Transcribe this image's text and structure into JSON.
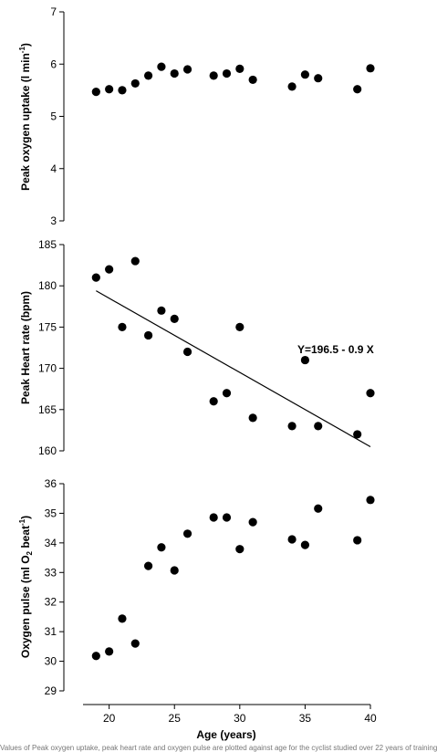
{
  "chart_data": [
    {
      "type": "scatter",
      "title": "",
      "ylabel": "Peak oxygen uptake (l min",
      "ylabel_sup": "-1",
      "ylabel_end": ")",
      "ylim": [
        3,
        7
      ],
      "yticks": [
        3,
        4,
        5,
        6,
        7
      ],
      "series": [
        {
          "x": [
            19,
            20,
            21,
            22,
            23,
            24,
            25,
            26,
            28,
            29,
            30,
            31,
            34,
            35,
            36,
            39,
            40
          ],
          "y": [
            5.47,
            5.52,
            5.5,
            5.63,
            5.78,
            5.95,
            5.82,
            5.9,
            5.78,
            5.82,
            5.91,
            5.7,
            5.57,
            5.8,
            5.73,
            5.52,
            5.92
          ]
        }
      ]
    },
    {
      "type": "scatter",
      "title": "",
      "ylabel": "Peak Heart rate (bpm)",
      "ylim": [
        160,
        185
      ],
      "yticks": [
        160,
        165,
        170,
        175,
        180,
        185
      ],
      "series": [
        {
          "x": [
            19,
            20,
            21,
            22,
            23,
            24,
            25,
            26,
            28,
            29,
            30,
            31,
            34,
            35,
            36,
            39,
            40
          ],
          "y": [
            181,
            182,
            175,
            183,
            174,
            177,
            176,
            172,
            166,
            167,
            175,
            164,
            163,
            171,
            163,
            162,
            167
          ]
        }
      ],
      "regression": {
        "intercept": 196.5,
        "slope": -0.9,
        "x_range": [
          19,
          40
        ]
      },
      "annotation": "Y=196.5 - 0.9 X"
    },
    {
      "type": "scatter",
      "title": "",
      "ylabel": "Oxygen pulse (ml O",
      "ylabel_sub": "2",
      "ylabel_mid": " beat",
      "ylabel_sup": "-1",
      "ylabel_end": ")",
      "ylim": [
        29,
        36
      ],
      "yticks": [
        29,
        30,
        31,
        32,
        33,
        34,
        35,
        36
      ],
      "series": [
        {
          "x": [
            19,
            20,
            21,
            22,
            23,
            24,
            25,
            26,
            28,
            29,
            30,
            31,
            34,
            35,
            36,
            39,
            40
          ],
          "y": [
            30.18,
            30.33,
            31.44,
            30.6,
            33.22,
            33.85,
            33.07,
            34.31,
            34.86,
            34.86,
            33.79,
            34.7,
            34.12,
            33.93,
            35.16,
            34.09,
            35.45
          ]
        }
      ]
    }
  ],
  "x_axis": {
    "xlabel": "Age (years)",
    "xlim": [
      18,
      40
    ],
    "xticks": [
      20,
      25,
      30,
      35,
      40
    ]
  },
  "caption": "Values of Peak oxygen uptake, peak heart rate and oxygen pulse are plotted against age for the cyclist studied over 22 years of training"
}
